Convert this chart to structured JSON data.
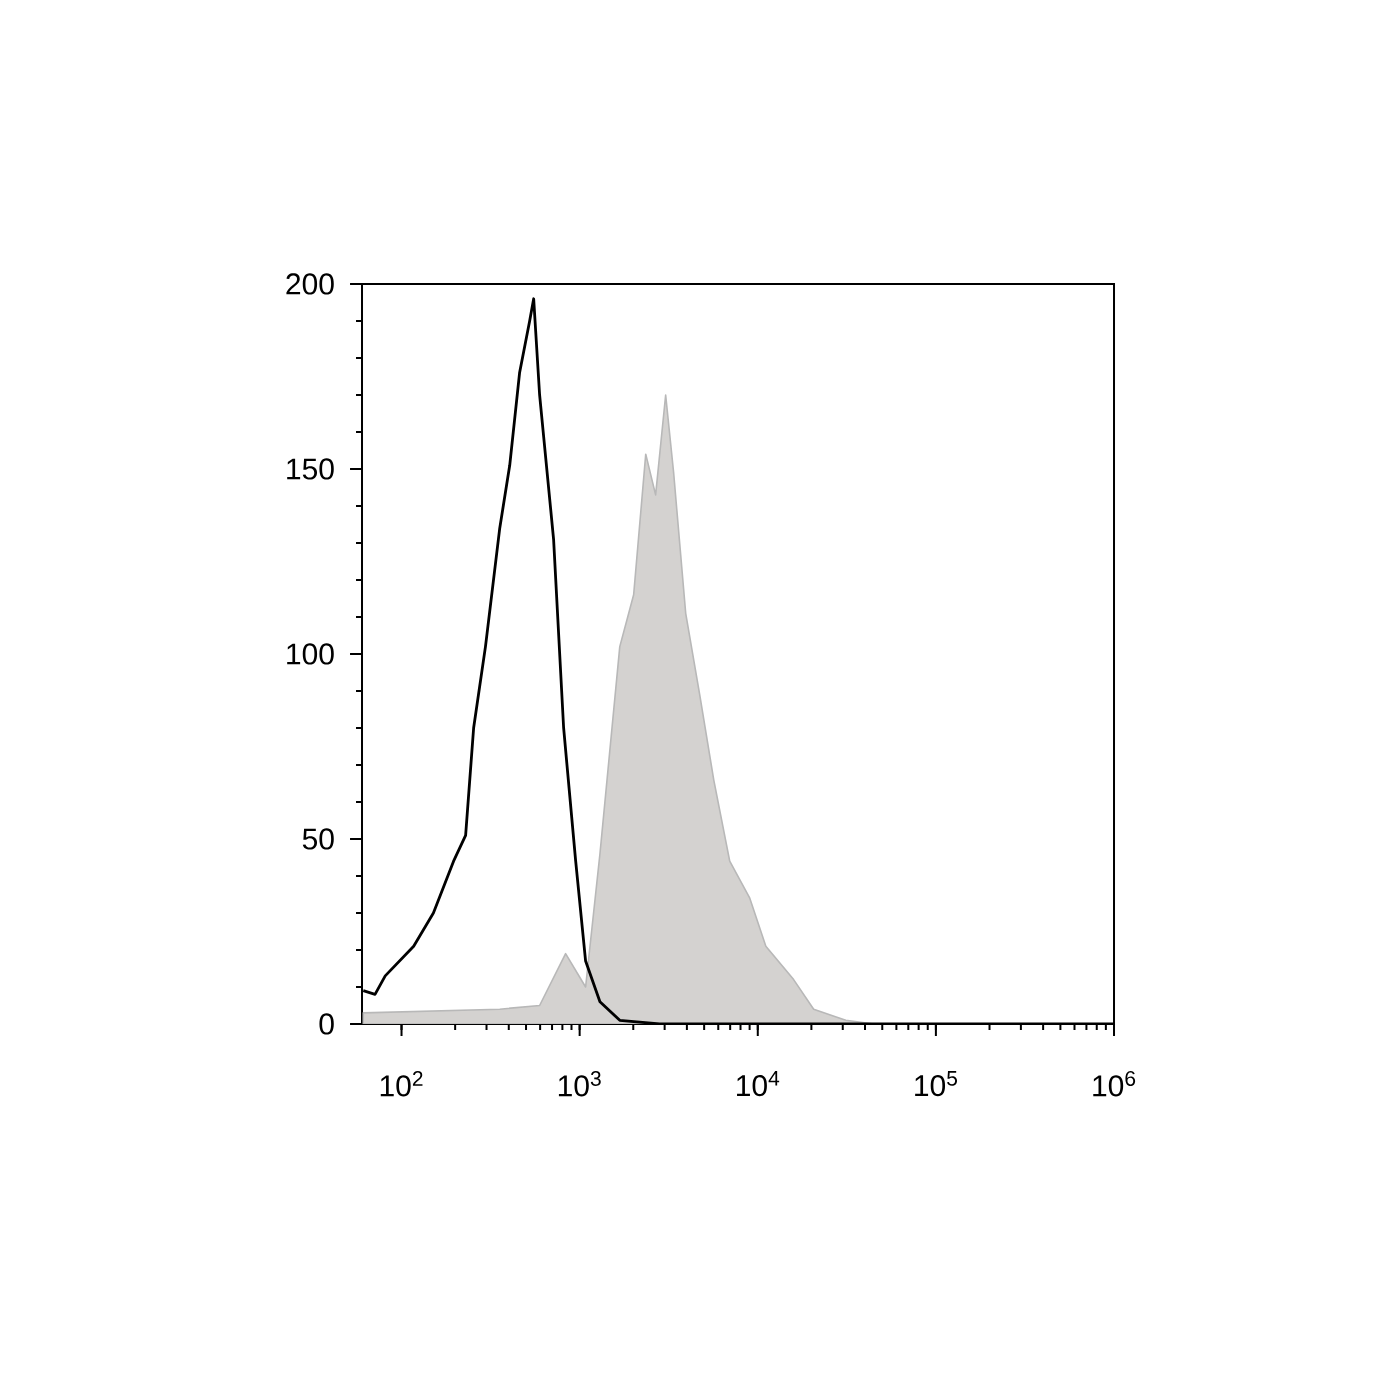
{
  "chart_data": {
    "type": "line",
    "log": "x",
    "xlim": [
      60,
      1000000
    ],
    "ylim": [
      0,
      200
    ],
    "xticks": [
      {
        "value": 100,
        "label": "10$^{2}$"
      },
      {
        "value": 1000,
        "label": "10$^{3}$"
      },
      {
        "value": 10000,
        "label": "10$^{4}$"
      },
      {
        "value": 100000,
        "label": "10$^{5}$"
      },
      {
        "value": 1000000,
        "label": "10$^{6}$"
      }
    ],
    "yticks": [
      0,
      50,
      100,
      150,
      200
    ],
    "series": [
      {
        "type": "area",
        "color": "#d4d2d0",
        "x": [
          61,
          356,
          596,
          834,
          1080,
          1300,
          1680,
          2010,
          2350,
          2670,
          3040,
          3370,
          3940,
          4720,
          5660,
          6960,
          9020,
          11100,
          15900,
          20600,
          31200,
          44900,
          1000000
        ],
        "values": [
          3,
          4,
          5,
          19,
          10,
          46,
          102,
          116,
          154,
          143,
          170,
          149,
          111,
          89,
          66,
          44,
          34,
          21,
          12,
          4,
          1,
          0,
          0
        ]
      },
      {
        "color": "#000000",
        "x": [
          61,
          71,
          81,
          117,
          151,
          196,
          229,
          254,
          296,
          356,
          405,
          460,
          524,
          552,
          596,
          714,
          813,
          950,
          1080,
          1300,
          1680,
          2810,
          1000000
        ],
        "values": [
          9,
          8,
          13,
          21,
          30,
          44,
          51,
          80,
          102,
          134,
          151,
          176,
          190,
          196,
          170,
          131,
          80,
          44,
          17,
          6,
          1,
          0,
          0
        ]
      }
    ]
  }
}
